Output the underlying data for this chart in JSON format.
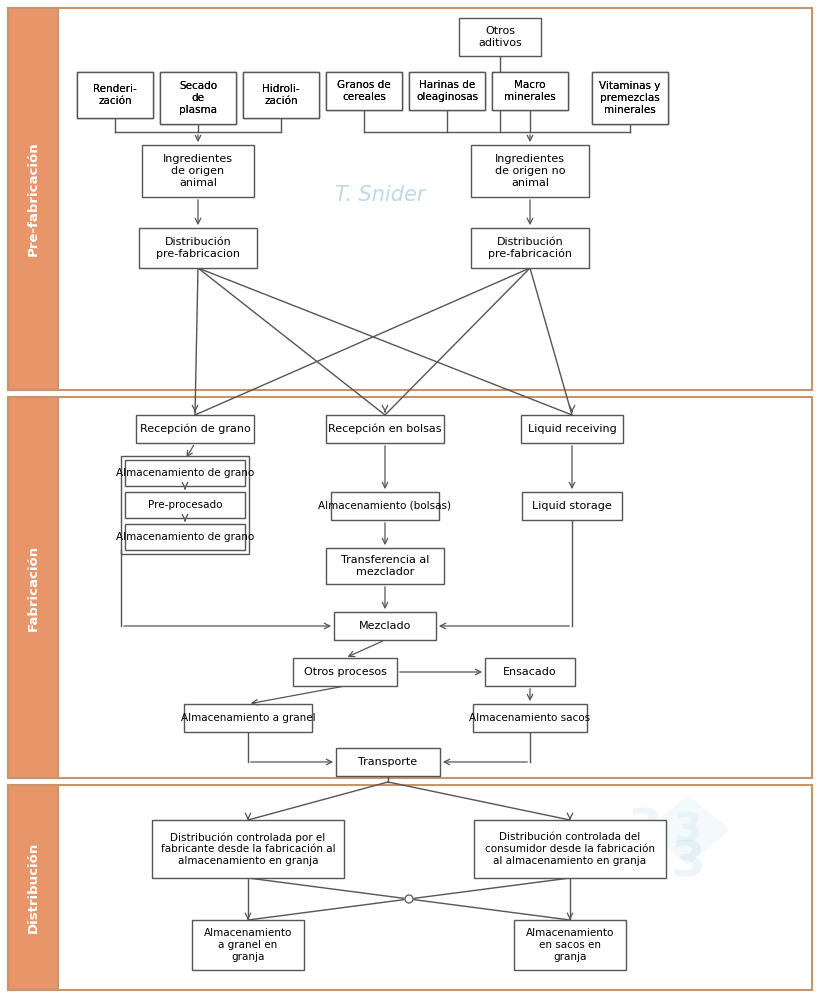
{
  "bg_color": "#ffffff",
  "border_color": "#c8956a",
  "section_orange": "#e8956a",
  "section_labels": {
    "pre": "Pre-fabricación",
    "fab": "Fabricación",
    "dist": "Distribución"
  },
  "watermark": "T. Snider",
  "watermark_color": "#7ab8d4",
  "watermark_alpha": 0.5,
  "edge_color": "#555555",
  "box_bg": "#ffffff"
}
